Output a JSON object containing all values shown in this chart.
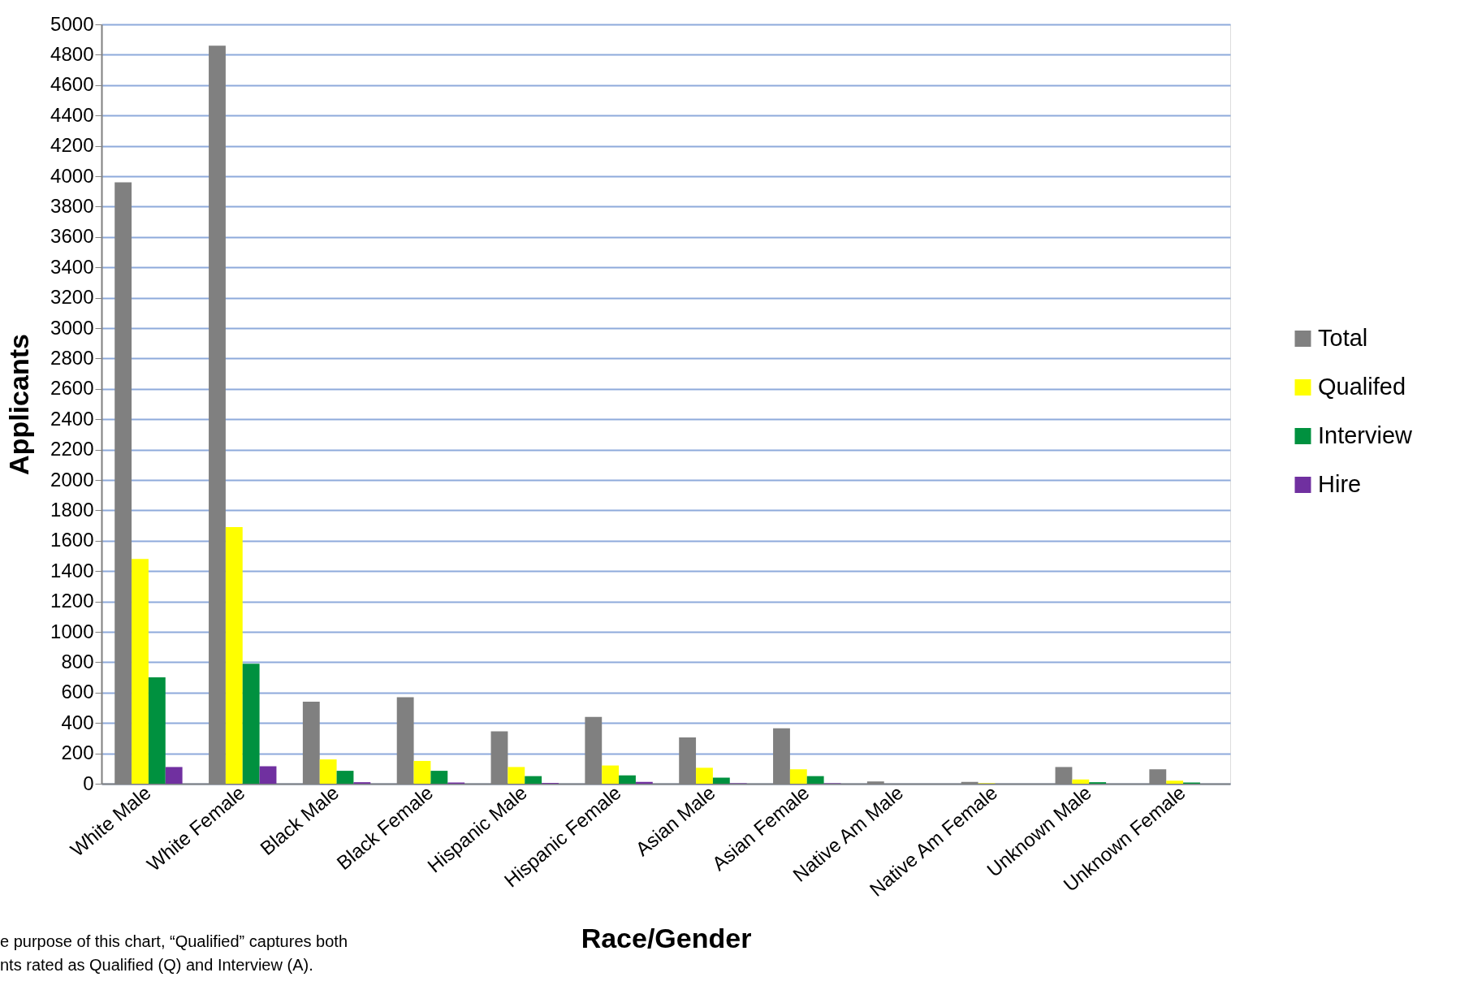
{
  "chart_data": {
    "type": "bar",
    "xlabel": "Race/Gender",
    "ylabel": "Applicants",
    "categories": [
      "White Male",
      "White Female",
      "Black Male",
      "Black Female",
      "Hispanic Male",
      "Hispanic Female",
      "Asian Male",
      "Asian Female",
      "Native Am Male",
      "Native Am Female",
      "Unknown Male",
      "Unknown Female"
    ],
    "series": [
      {
        "name": "Total",
        "color": "#808080",
        "values": [
          3960,
          4860,
          540,
          570,
          345,
          440,
          305,
          365,
          15,
          12,
          110,
          95
        ]
      },
      {
        "name": "Qualifed",
        "color": "#ffff00",
        "values": [
          1480,
          1690,
          160,
          150,
          110,
          120,
          105,
          95,
          0,
          3,
          28,
          20
        ]
      },
      {
        "name": "Interview",
        "color": "#00913f",
        "values": [
          700,
          790,
          85,
          85,
          50,
          55,
          40,
          50,
          0,
          0,
          10,
          8
        ]
      },
      {
        "name": "Hire",
        "color": "#7030a0",
        "values": [
          110,
          115,
          10,
          8,
          5,
          12,
          3,
          3,
          0,
          0,
          0,
          0
        ]
      }
    ],
    "ylim": [
      0,
      5000
    ],
    "yticks": [
      0,
      200,
      400,
      600,
      800,
      1000,
      1200,
      1400,
      1600,
      1800,
      2000,
      2200,
      2400,
      2600,
      2800,
      3000,
      3200,
      3400,
      3600,
      3800,
      4000,
      4200,
      4400,
      4600,
      4800,
      5000
    ],
    "grid": "y",
    "legend": "right",
    "annotations": [
      "e purpose of this chart, “Qualified” captures both",
      "nts rated as Qualified (Q) and Interview (A)."
    ]
  }
}
